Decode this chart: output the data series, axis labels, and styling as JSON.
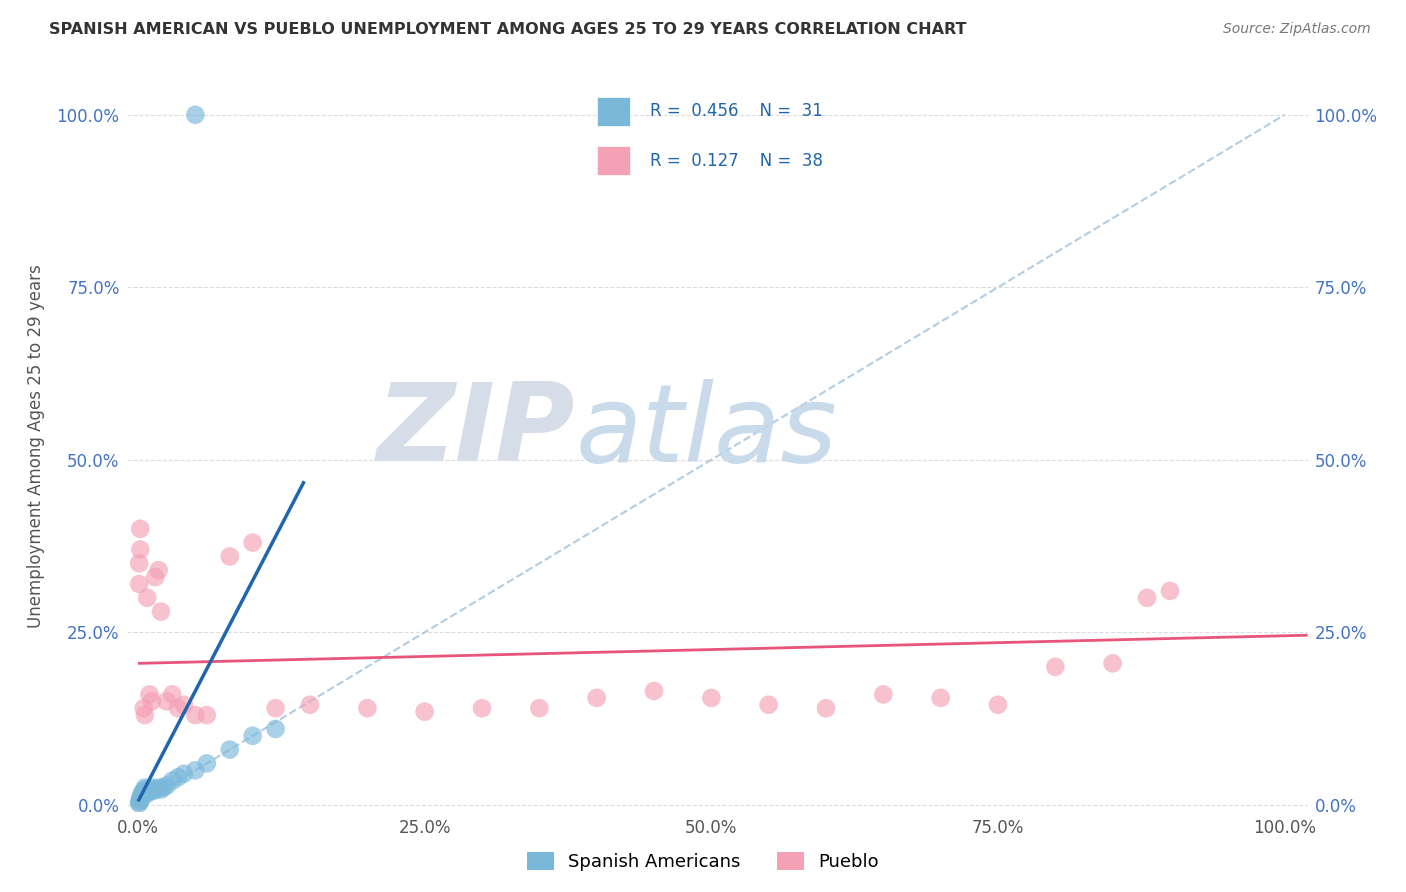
{
  "title": "SPANISH AMERICAN VS PUEBLO UNEMPLOYMENT AMONG AGES 25 TO 29 YEARS CORRELATION CHART",
  "source": "Source: ZipAtlas.com",
  "ylabel": "Unemployment Among Ages 25 to 29 years",
  "x_ticks": [
    0.0,
    0.25,
    0.5,
    0.75,
    1.0
  ],
  "x_tick_labels": [
    "0.0%",
    "25.0%",
    "50.0%",
    "75.0%",
    "100.0%"
  ],
  "y_ticks": [
    0.0,
    0.25,
    0.5,
    0.75,
    1.0
  ],
  "y_tick_labels": [
    "0.0%",
    "25.0%",
    "50.0%",
    "75.0%",
    "100.0%"
  ],
  "blue_color": "#7ab8d9",
  "pink_color": "#f4a0b5",
  "blue_line_color": "#2166ac",
  "pink_line_color": "#e8547a",
  "diag_line_color": "#aac8e0",
  "legend_label_blue": "Spanish Americans",
  "legend_label_pink": "Pueblo",
  "blue_R": "0.456",
  "blue_N": "31",
  "pink_R": "0.127",
  "pink_N": "38",
  "blue_scatter_x": [
    0.001,
    0.001,
    0.002,
    0.002,
    0.002,
    0.003,
    0.003,
    0.004,
    0.005,
    0.006,
    0.006,
    0.007,
    0.008,
    0.01,
    0.01,
    0.012,
    0.013,
    0.015,
    0.018,
    0.02,
    0.022,
    0.025,
    0.03,
    0.035,
    0.04,
    0.05,
    0.06,
    0.08,
    0.1,
    0.12,
    0.05
  ],
  "blue_scatter_y": [
    0.002,
    0.004,
    0.006,
    0.008,
    0.01,
    0.012,
    0.015,
    0.018,
    0.02,
    0.022,
    0.025,
    0.015,
    0.018,
    0.02,
    0.022,
    0.025,
    0.02,
    0.022,
    0.025,
    0.022,
    0.025,
    0.028,
    0.035,
    0.04,
    0.045,
    0.05,
    0.06,
    0.08,
    0.1,
    0.11,
    1.0
  ],
  "pink_scatter_x": [
    0.001,
    0.001,
    0.002,
    0.002,
    0.005,
    0.006,
    0.008,
    0.01,
    0.012,
    0.015,
    0.018,
    0.02,
    0.025,
    0.03,
    0.035,
    0.04,
    0.05,
    0.06,
    0.08,
    0.1,
    0.12,
    0.15,
    0.2,
    0.25,
    0.3,
    0.35,
    0.4,
    0.45,
    0.5,
    0.55,
    0.6,
    0.65,
    0.7,
    0.75,
    0.8,
    0.85,
    0.88,
    0.9
  ],
  "pink_scatter_y": [
    0.32,
    0.35,
    0.37,
    0.4,
    0.14,
    0.13,
    0.3,
    0.16,
    0.15,
    0.33,
    0.34,
    0.28,
    0.15,
    0.16,
    0.14,
    0.145,
    0.13,
    0.13,
    0.36,
    0.38,
    0.14,
    0.145,
    0.14,
    0.135,
    0.14,
    0.14,
    0.155,
    0.165,
    0.155,
    0.145,
    0.14,
    0.16,
    0.155,
    0.145,
    0.2,
    0.205,
    0.3,
    0.31
  ],
  "background_color": "#ffffff",
  "axis_tick_color": "#4472c4",
  "grid_color": "#dddddd",
  "title_color": "#333333",
  "ylabel_color": "#555555"
}
